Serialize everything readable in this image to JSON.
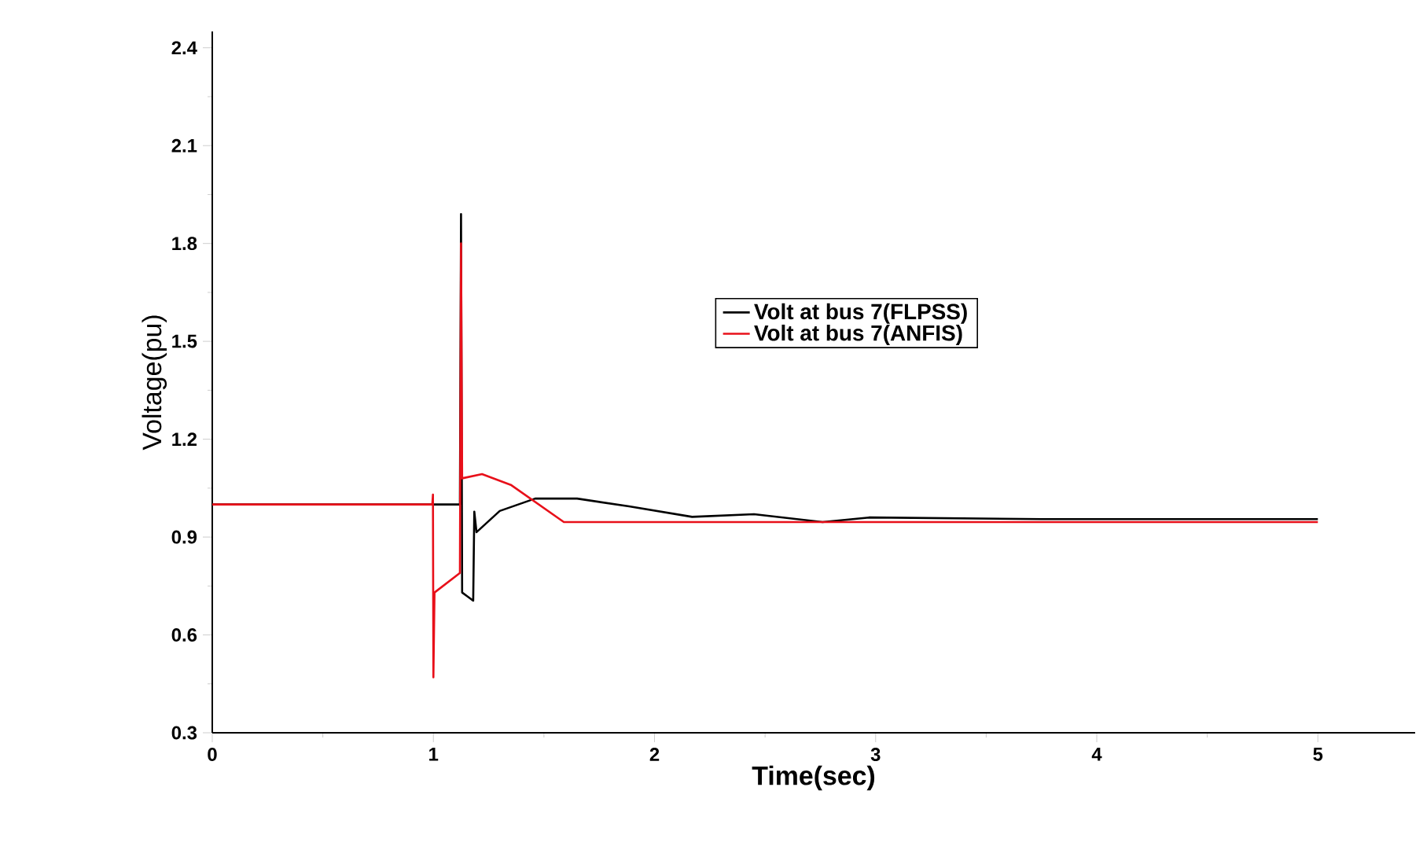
{
  "chart_data": {
    "type": "line",
    "xlabel": "Time(sec)",
    "ylabel": "Voltage(pu)",
    "xlim": [
      0,
      5.44
    ],
    "ylim": [
      0.3,
      2.45
    ],
    "xticks": [
      0,
      1,
      2,
      3,
      4,
      5
    ],
    "yticks": [
      0.3,
      0.6,
      0.9,
      1.2,
      1.5,
      1.8,
      2.1,
      2.4
    ],
    "legend": "right",
    "grid": false,
    "series": [
      {
        "name": "Volt at bus 7(FLPSS)",
        "color": "#000000",
        "x": [
          0,
          1.12,
          1.125,
          1.13,
          1.15,
          1.18,
          1.185,
          1.195,
          1.3,
          1.46,
          1.65,
          1.885,
          2.17,
          2.45,
          2.76,
          2.97,
          3.75,
          5.0
        ],
        "values": [
          1.0,
          1.0,
          1.89,
          0.73,
          0.72,
          0.705,
          0.978,
          0.915,
          0.98,
          1.018,
          1.018,
          0.994,
          0.962,
          0.97,
          0.946,
          0.96,
          0.955,
          0.955
        ]
      },
      {
        "name": "Volt at bus 7(ANFIS)",
        "color": "#e8101a",
        "x": [
          0,
          0.995,
          0.998,
          1.0,
          1.005,
          1.12,
          1.125,
          1.13,
          1.22,
          1.35,
          1.59,
          5.0
        ],
        "values": [
          1.0,
          1.0,
          1.03,
          0.47,
          0.73,
          0.79,
          1.8,
          1.08,
          1.093,
          1.06,
          0.946,
          0.946
        ]
      }
    ]
  }
}
